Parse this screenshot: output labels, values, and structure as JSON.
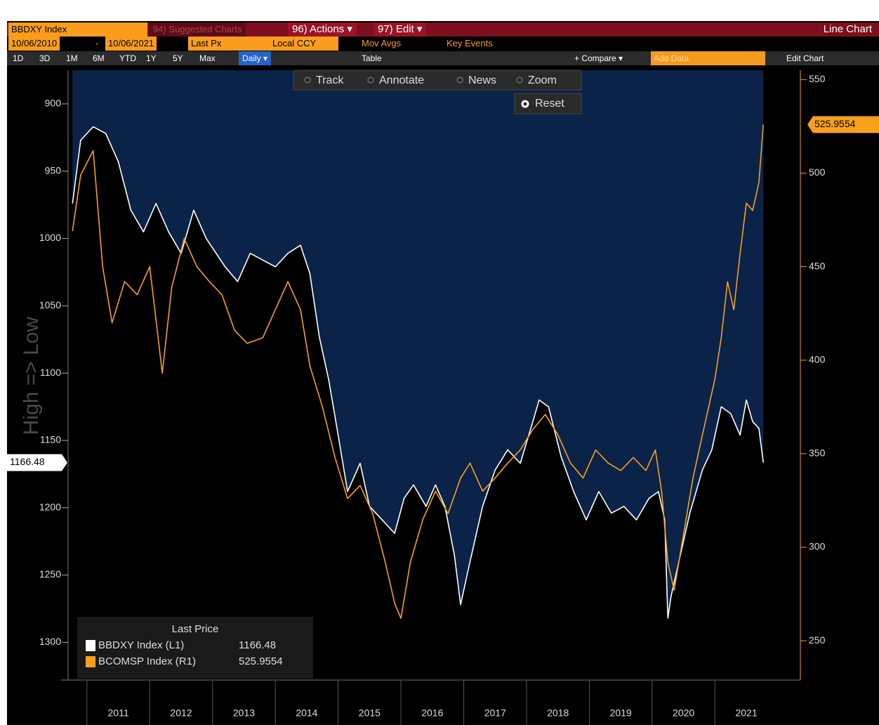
{
  "toolbar": {
    "security": "BBDXY Index",
    "suggested": "94) Suggested Charts",
    "actions": "96) Actions ▾",
    "edit": "97) Edit ▾",
    "chart_kind": "Line Chart",
    "start_date": "10/06/2010",
    "date_sep": "-",
    "end_date": "10/06/2021",
    "field": "Last Px",
    "currency": "Local CCY",
    "mov_avgs": "Mov Avgs",
    "key_events": "Key Events",
    "periods": [
      "1D",
      "3D",
      "1M",
      "6M",
      "YTD",
      "1Y",
      "5Y",
      "Max"
    ],
    "frequency": "Daily ▾",
    "table": "Table",
    "compare": "+ Compare ▾",
    "add_data": "Add Data",
    "edit_chart": "Edit Chart",
    "tools": [
      "Track",
      "Annotate",
      "News",
      "Zoom"
    ],
    "reset": "Reset"
  },
  "chart_data": {
    "type": "line",
    "y_label": "High => Low",
    "legend_title": "Last Price",
    "legend": "lower left",
    "xlim": [
      2010.7,
      2022.36
    ],
    "xticks": [
      2011,
      2012,
      2013,
      2014,
      2015,
      2016,
      2017,
      2018,
      2019,
      2020,
      2021
    ],
    "ylim": [
      875,
      1328
    ],
    "y_inverted": true,
    "yticks": [
      900,
      950,
      1000,
      1050,
      1100,
      1150,
      1200,
      1250,
      1300
    ],
    "y2lim": [
      229,
      555
    ],
    "y2ticks": [
      250,
      300,
      350,
      400,
      450,
      500,
      550
    ],
    "area_color": "#0b2348",
    "series": [
      {
        "name": "BBDXY Index  (L1)",
        "color": "#ffffff",
        "axis": "y",
        "x": [
          2010.77,
          2010.9,
          2011.1,
          2011.3,
          2011.5,
          2011.7,
          2011.9,
          2012.1,
          2012.3,
          2012.5,
          2012.7,
          2012.9,
          2013.2,
          2013.4,
          2013.6,
          2013.8,
          2014.0,
          2014.2,
          2014.4,
          2014.55,
          2014.7,
          2014.85,
          2015.0,
          2015.15,
          2015.35,
          2015.5,
          2015.7,
          2015.9,
          2016.05,
          2016.2,
          2016.4,
          2016.55,
          2016.7,
          2016.85,
          2016.95,
          2017.1,
          2017.3,
          2017.5,
          2017.7,
          2017.9,
          2018.1,
          2018.2,
          2018.35,
          2018.55,
          2018.75,
          2018.95,
          2019.15,
          2019.35,
          2019.55,
          2019.75,
          2019.95,
          2020.1,
          2020.2,
          2020.25,
          2020.3,
          2020.45,
          2020.6,
          2020.8,
          2020.95,
          2021.1,
          2021.25,
          2021.4,
          2021.5,
          2021.6,
          2021.7,
          2021.77
        ],
        "values": [
          974,
          927,
          917,
          922,
          943,
          979,
          995,
          974,
          995,
          1011,
          979,
          1000,
          1021,
          1032,
          1011,
          1016,
          1021,
          1011,
          1005,
          1026,
          1073,
          1105,
          1146,
          1188,
          1167,
          1199,
          1209,
          1219,
          1193,
          1183,
          1199,
          1183,
          1199,
          1235,
          1272,
          1240,
          1199,
          1172,
          1157,
          1167,
          1136,
          1120,
          1125,
          1162,
          1188,
          1209,
          1188,
          1204,
          1199,
          1209,
          1193,
          1188,
          1209,
          1282,
          1266,
          1235,
          1204,
          1172,
          1157,
          1125,
          1130,
          1146,
          1120,
          1136,
          1141,
          1166.48
        ]
      },
      {
        "name": "BCOMSP Index  (R1)",
        "color": "#f7a01c",
        "axis": "y2",
        "x": [
          2010.77,
          2010.9,
          2011.1,
          2011.25,
          2011.4,
          2011.6,
          2011.8,
          2012.0,
          2012.2,
          2012.35,
          2012.55,
          2012.75,
          2012.95,
          2013.15,
          2013.35,
          2013.55,
          2013.8,
          2014.0,
          2014.2,
          2014.4,
          2014.55,
          2014.75,
          2014.95,
          2015.15,
          2015.35,
          2015.55,
          2015.75,
          2015.9,
          2016.0,
          2016.15,
          2016.35,
          2016.55,
          2016.75,
          2016.95,
          2017.1,
          2017.3,
          2017.5,
          2017.7,
          2017.9,
          2018.1,
          2018.3,
          2018.5,
          2018.7,
          2018.9,
          2019.1,
          2019.3,
          2019.5,
          2019.7,
          2019.9,
          2020.05,
          2020.15,
          2020.25,
          2020.35,
          2020.5,
          2020.65,
          2020.8,
          2020.9,
          2021.0,
          2021.1,
          2021.2,
          2021.3,
          2021.4,
          2021.5,
          2021.6,
          2021.7,
          2021.77
        ],
        "values": [
          469,
          499,
          512,
          450,
          420,
          442,
          435,
          450,
          393,
          439,
          465,
          450,
          442,
          435,
          416,
          409,
          412,
          427,
          442,
          427,
          397,
          375,
          348,
          326,
          333,
          318,
          292,
          270,
          262,
          292,
          315,
          330,
          318,
          337,
          345,
          330,
          337,
          345,
          352,
          363,
          371,
          360,
          345,
          337,
          352,
          345,
          341,
          348,
          341,
          352,
          330,
          292,
          277,
          307,
          337,
          360,
          375,
          390,
          412,
          442,
          427,
          457,
          484,
          480,
          495,
          525.9554
        ]
      }
    ]
  }
}
